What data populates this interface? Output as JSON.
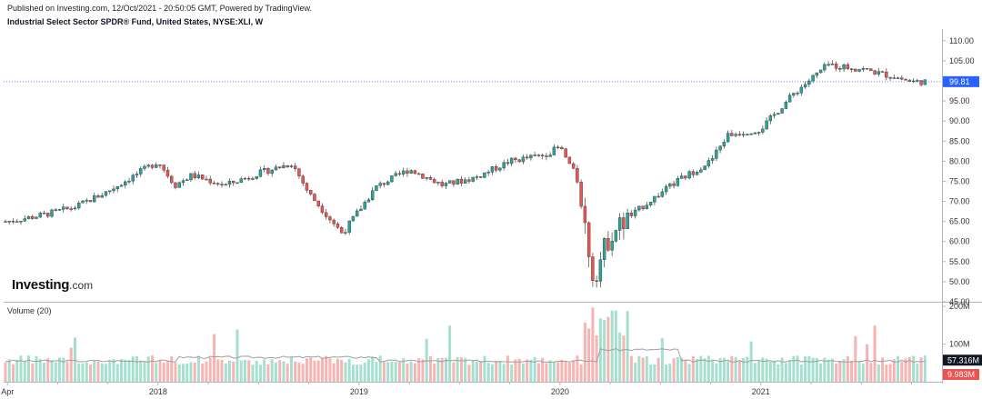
{
  "header": {
    "published": "Published on Investing.com, 12/Oct/2021 - 20:50:05 GMT, Powered by TradingView.",
    "title": "Industrial Select Sector SPDR® Fund, United States, NYSE:XLI, W"
  },
  "logo": {
    "main": "Investing",
    "suffix": ".com"
  },
  "chart_data": [
    {
      "type": "candlestick",
      "title": "Industrial Select Sector SPDR® Fund, United States, NYSE:XLI, W",
      "ylim": [
        45,
        112
      ],
      "y_ticks": [
        "110.00",
        "105.00",
        "100.00",
        "95.00",
        "90.00",
        "85.00",
        "80.00",
        "75.00",
        "70.00",
        "65.00",
        "60.00",
        "55.00",
        "50.00",
        "45.00"
      ],
      "x_ticks": [
        "Apr",
        "2018",
        "2019",
        "2020",
        "2021"
      ],
      "last_price": "99.81",
      "colors": {
        "up": "#26a69a",
        "down": "#ef5350",
        "price_line": "#2962ff"
      },
      "series_close": [
        {
          "date": "2017-04",
          "close": 65.0
        },
        {
          "date": "2017-06",
          "close": 66.5
        },
        {
          "date": "2017-08",
          "close": 68.5
        },
        {
          "date": "2017-10",
          "close": 72.5
        },
        {
          "date": "2017-12",
          "close": 77.5
        },
        {
          "date": "2018-01",
          "close": 80.0
        },
        {
          "date": "2018-02",
          "close": 74.0
        },
        {
          "date": "2018-03",
          "close": 76.5
        },
        {
          "date": "2018-05",
          "close": 74.0
        },
        {
          "date": "2018-07",
          "close": 77.0
        },
        {
          "date": "2018-09",
          "close": 79.5
        },
        {
          "date": "2018-10",
          "close": 72.0
        },
        {
          "date": "2018-12",
          "close": 62.0
        },
        {
          "date": "2019-02",
          "close": 73.5
        },
        {
          "date": "2019-04",
          "close": 78.0
        },
        {
          "date": "2019-06",
          "close": 74.0
        },
        {
          "date": "2019-08",
          "close": 76.0
        },
        {
          "date": "2019-10",
          "close": 80.0
        },
        {
          "date": "2019-12",
          "close": 81.5
        },
        {
          "date": "2020-01",
          "close": 83.5
        },
        {
          "date": "2020-02",
          "close": 76.0
        },
        {
          "date": "2020-03",
          "close": 51.0
        },
        {
          "date": "2020-04",
          "close": 62.0
        },
        {
          "date": "2020-06",
          "close": 69.0
        },
        {
          "date": "2020-08",
          "close": 75.0
        },
        {
          "date": "2020-10",
          "close": 80.0
        },
        {
          "date": "2020-11",
          "close": 86.5
        },
        {
          "date": "2021-01",
          "close": 88.0
        },
        {
          "date": "2021-03",
          "close": 97.0
        },
        {
          "date": "2021-05",
          "close": 104.0
        },
        {
          "date": "2021-07",
          "close": 103.0
        },
        {
          "date": "2021-09",
          "close": 101.0
        },
        {
          "date": "2021-10",
          "close": 99.81
        }
      ]
    },
    {
      "type": "bar",
      "title": "Volume (20)",
      "ylim": [
        0,
        210
      ],
      "y_ticks": [
        "200M",
        "100M"
      ],
      "last_volume": "57.316M",
      "last_bar": "9.983M",
      "colors": {
        "up": "#a5e0cf",
        "down": "#f7b4b2",
        "ma": "#9e9e9e"
      },
      "ma_level_M": 57.316
    }
  ]
}
